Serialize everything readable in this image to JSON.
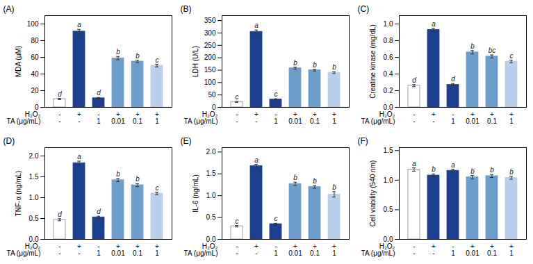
{
  "chart_data": [
    {
      "type": "bar",
      "title": "(A)",
      "ylabel": "MDA (μM)",
      "ylim": [
        0,
        110
      ],
      "yticks": [
        0,
        20,
        40,
        60,
        80,
        100
      ],
      "values": [
        10,
        91,
        11,
        59,
        55,
        50
      ],
      "errors": [
        0.8,
        2.5,
        0.8,
        2.0,
        1.5,
        1.5
      ],
      "annotations": [
        "d",
        "a",
        "d",
        "b",
        "b",
        "c"
      ],
      "colors": [
        "#ffffff",
        "#1c3f8f",
        "#1c3f8f",
        "#6e9ecb",
        "#6e9ecb",
        "#b8d0eb"
      ],
      "edge_colors": [
        "#888888",
        "#1c3f8f",
        "#1c3f8f",
        "#6e9ecb",
        "#6e9ecb",
        "#b8d0eb"
      ],
      "category_rows": [
        {
          "label": "H₂O₂",
          "labels": [
            "-",
            "+",
            "-",
            "+",
            "+",
            "+"
          ]
        },
        {
          "label": "TA (μg/mL)",
          "labels": [
            "-",
            "-",
            "1",
            "0.01",
            "0.1",
            "1"
          ]
        }
      ],
      "grid": false
    },
    {
      "type": "bar",
      "title": "(B)",
      "ylabel": "LDH (U/L)",
      "ylim": [
        0,
        370
      ],
      "yticks": [
        0,
        50,
        100,
        150,
        200,
        250,
        300,
        350
      ],
      "values": [
        22,
        305,
        32,
        158,
        150,
        140
      ],
      "errors": [
        2.0,
        7.0,
        2.5,
        4.5,
        3.5,
        3.5
      ],
      "annotations": [
        "c",
        "a",
        "c",
        "b",
        "b",
        "b"
      ],
      "colors": [
        "#ffffff",
        "#1c3f8f",
        "#1c3f8f",
        "#6e9ecb",
        "#6e9ecb",
        "#b8d0eb"
      ],
      "edge_colors": [
        "#888888",
        "#1c3f8f",
        "#1c3f8f",
        "#6e9ecb",
        "#6e9ecb",
        "#b8d0eb"
      ],
      "category_rows": [
        {
          "label": "H₂O₂",
          "labels": [
            "-",
            "+",
            "-",
            "+",
            "+",
            "+"
          ]
        },
        {
          "label": "TA (μg/mL)",
          "labels": [
            "-",
            "-",
            "1",
            "0.01",
            "0.1",
            "1"
          ]
        }
      ],
      "grid": false
    },
    {
      "type": "bar",
      "title": "(C)",
      "ylabel": "Creatine kinase (mg/dL)",
      "ylim": [
        0,
        1.1
      ],
      "yticks": [
        {
          "value": 0,
          "label": "0.0"
        },
        0.2,
        0.4,
        0.6,
        0.8,
        {
          "value": 1,
          "label": "1.0"
        }
      ],
      "values": [
        0.26,
        0.93,
        0.27,
        0.66,
        0.61,
        0.55
      ],
      "errors": [
        0.012,
        0.02,
        0.015,
        0.02,
        0.018,
        0.015
      ],
      "annotations": [
        "d",
        "a",
        "d",
        "b",
        "bc",
        "c"
      ],
      "colors": [
        "#ffffff",
        "#1c3f8f",
        "#1c3f8f",
        "#6e9ecb",
        "#6e9ecb",
        "#b8d0eb"
      ],
      "edge_colors": [
        "#888888",
        "#1c3f8f",
        "#1c3f8f",
        "#6e9ecb",
        "#6e9ecb",
        "#b8d0eb"
      ],
      "category_rows": [
        {
          "label": "H₂O₂",
          "labels": [
            "-",
            "+",
            "-",
            "+",
            "+",
            "+"
          ]
        },
        {
          "label": "TA (μg/mL)",
          "labels": [
            "-",
            "-",
            "1",
            "0.01",
            "0.1",
            "1"
          ]
        }
      ],
      "grid": false
    },
    {
      "type": "bar",
      "title": "(D)",
      "ylabel": "TNF-α (ng/mL)",
      "ylim": [
        0,
        2.2
      ],
      "yticks": [
        {
          "value": 0,
          "label": "0.0"
        },
        0.5,
        {
          "value": 1,
          "label": "1.0"
        },
        1.5,
        {
          "value": 2,
          "label": "2.0"
        }
      ],
      "values": [
        0.47,
        1.83,
        0.53,
        1.42,
        1.3,
        1.1
      ],
      "errors": [
        0.025,
        0.045,
        0.025,
        0.038,
        0.035,
        0.028
      ],
      "annotations": [
        "d",
        "a",
        "d",
        "b",
        "b",
        "c"
      ],
      "colors": [
        "#ffffff",
        "#1c3f8f",
        "#1c3f8f",
        "#6e9ecb",
        "#6e9ecb",
        "#b8d0eb"
      ],
      "edge_colors": [
        "#888888",
        "#1c3f8f",
        "#1c3f8f",
        "#6e9ecb",
        "#6e9ecb",
        "#b8d0eb"
      ],
      "category_rows": [
        {
          "label": "H₂O₂",
          "labels": [
            "-",
            "+",
            "-",
            "+",
            "+",
            "+"
          ]
        },
        {
          "label": "TA (μg/mL)",
          "labels": [
            "-",
            "-",
            "1",
            "0.01",
            "0.1",
            "1"
          ]
        }
      ],
      "grid": false
    },
    {
      "type": "bar",
      "title": "(E)",
      "ylabel": "IL-6 (ng/mL)",
      "ylim": [
        0,
        2.1
      ],
      "yticks": [
        {
          "value": 0,
          "label": "0.0"
        },
        0.5,
        {
          "value": 1,
          "label": "1.0"
        },
        1.5,
        {
          "value": 2,
          "label": "2.0"
        }
      ],
      "values": [
        0.3,
        1.68,
        0.35,
        1.27,
        1.2,
        1.03
      ],
      "errors": [
        0.018,
        0.038,
        0.018,
        0.038,
        0.032,
        0.062
      ],
      "annotations": [
        "c",
        "a",
        "c",
        "b",
        "b",
        "b"
      ],
      "colors": [
        "#ffffff",
        "#1c3f8f",
        "#1c3f8f",
        "#6e9ecb",
        "#6e9ecb",
        "#b8d0eb"
      ],
      "edge_colors": [
        "#888888",
        "#1c3f8f",
        "#1c3f8f",
        "#6e9ecb",
        "#6e9ecb",
        "#b8d0eb"
      ],
      "category_rows": [
        {
          "label": "H₂O₂",
          "labels": [
            "-",
            "+",
            "-",
            "+",
            "+",
            "+"
          ]
        },
        {
          "label": "TA (μg/mL)",
          "labels": [
            "-",
            "-",
            "1",
            "0.01",
            "0.1",
            "1"
          ]
        }
      ],
      "grid": false
    },
    {
      "type": "bar",
      "title": "(F)",
      "ylabel": "Cell viability (540 nm)",
      "ylim": [
        0,
        1.55
      ],
      "yticks": [
        {
          "value": 0,
          "label": "0.0"
        },
        0.5,
        {
          "value": 1,
          "label": "1.0"
        },
        1.5
      ],
      "values": [
        1.18,
        1.08,
        1.16,
        1.05,
        1.07,
        1.04
      ],
      "errors": [
        0.028,
        0.025,
        0.025,
        0.03,
        0.025,
        0.025
      ],
      "annotations": [
        "a",
        "b",
        "a",
        "b",
        "b",
        "b"
      ],
      "colors": [
        "#ffffff",
        "#1c3f8f",
        "#1c3f8f",
        "#6e9ecb",
        "#6e9ecb",
        "#b8d0eb"
      ],
      "edge_colors": [
        "#888888",
        "#1c3f8f",
        "#1c3f8f",
        "#6e9ecb",
        "#6e9ecb",
        "#b8d0eb"
      ],
      "category_rows": [
        {
          "label": "H₂O₂",
          "labels": [
            "-",
            "+",
            "-",
            "+",
            "+",
            "+"
          ]
        },
        {
          "label": "TA (μg/mL)",
          "labels": [
            "-",
            "-",
            "1",
            "0.01",
            "0.1",
            "1"
          ]
        }
      ],
      "grid": false
    }
  ]
}
